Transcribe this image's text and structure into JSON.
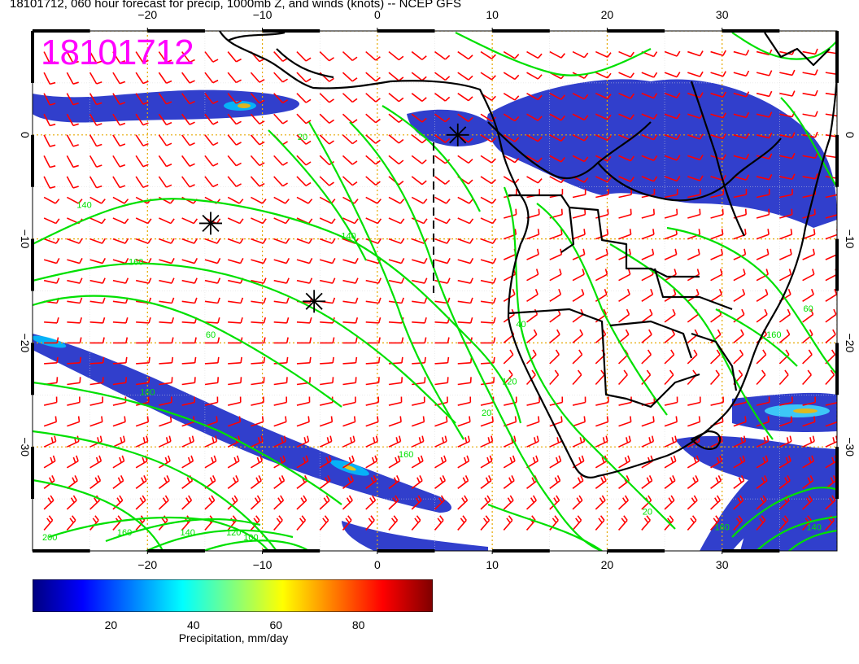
{
  "title": "18101712, 060 hour forecast for precip, 1000mb Z, and winds (knots) -- NCEP GFS",
  "stamp": "18101712",
  "map": {
    "lon_range": [
      -30,
      40
    ],
    "lat_range": [
      -40,
      10
    ],
    "lon_ticks": [
      -20,
      -10,
      0,
      10,
      20,
      30
    ],
    "lat_ticks": [
      0,
      -10,
      -20,
      -30
    ],
    "grid_color": "#e6a800",
    "contour_color": "#00e000",
    "barb_color": "#ff0000",
    "coast_color": "#000000",
    "contour_labels": [
      {
        "text": "20",
        "lon": -6.5,
        "lat": -0.5
      },
      {
        "text": "140",
        "lon": -25.5,
        "lat": -7
      },
      {
        "text": "140",
        "lon": -2.5,
        "lat": -10
      },
      {
        "text": "160",
        "lon": -21,
        "lat": -12.5
      },
      {
        "text": "60",
        "lon": -14.5,
        "lat": -19.5
      },
      {
        "text": "160",
        "lon": -20,
        "lat": -25
      },
      {
        "text": "160",
        "lon": 2.5,
        "lat": -31
      },
      {
        "text": "20",
        "lon": 9.5,
        "lat": -27
      },
      {
        "text": "120",
        "lon": 11.5,
        "lat": -24
      },
      {
        "text": "40",
        "lon": 12.5,
        "lat": -18.5
      },
      {
        "text": "60",
        "lon": 37.5,
        "lat": -17
      },
      {
        "text": "160",
        "lon": 34.5,
        "lat": -19.5
      },
      {
        "text": "100",
        "lon": 40.5,
        "lat": -21.5
      },
      {
        "text": "20",
        "lon": 23.5,
        "lat": -36.5
      },
      {
        "text": "200",
        "lon": -28.5,
        "lat": -39
      },
      {
        "text": "160",
        "lon": -22,
        "lat": -38.5
      },
      {
        "text": "140",
        "lon": -16.5,
        "lat": -38.5
      },
      {
        "text": "120",
        "lon": -12.5,
        "lat": -38.5
      },
      {
        "text": "100",
        "lon": -11,
        "lat": -39
      },
      {
        "text": "160",
        "lon": 30,
        "lat": -38
      },
      {
        "text": "140",
        "lon": 38,
        "lat": -38
      }
    ],
    "markers": [
      {
        "name": "high-center-1",
        "lon": -14.5,
        "lat": -8.5
      },
      {
        "name": "high-center-2",
        "lon": -5.5,
        "lat": -16
      },
      {
        "name": "low-center",
        "lon": 7,
        "lat": 0
      }
    ]
  },
  "colorbar": {
    "title": "Precipitation, mm/day",
    "ticks": [
      "20",
      "40",
      "60",
      "80"
    ],
    "tick_values": [
      20,
      40,
      60,
      80
    ],
    "range": [
      1,
      98
    ],
    "colors": [
      "#00007f",
      "#0000ff",
      "#0080ff",
      "#00ffff",
      "#80ff80",
      "#ffff00",
      "#ff8000",
      "#ff0000",
      "#7f0000"
    ]
  }
}
